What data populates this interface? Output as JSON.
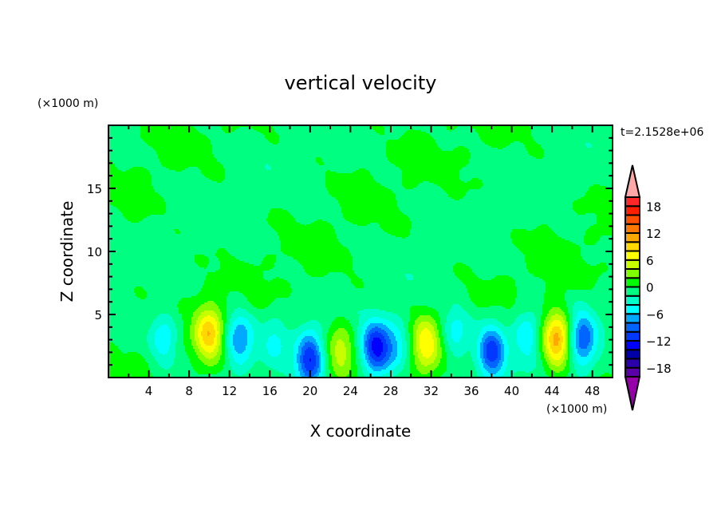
{
  "chart_data": {
    "type": "heatmap",
    "subtype": "filled-contour",
    "title": "vertical velocity",
    "xlabel": "X coordinate",
    "ylabel": "Z coordinate",
    "x_units": "(×1000 m)",
    "y_units": "(×1000 m)",
    "time_label": "t=2.1528e+06",
    "xlim": [
      0,
      50
    ],
    "ylim": [
      0,
      20
    ],
    "x_ticks": [
      4,
      8,
      12,
      16,
      20,
      24,
      28,
      32,
      36,
      40,
      44,
      48
    ],
    "x_tick_labels": [
      "4",
      "8",
      "12",
      "16",
      "20",
      "24",
      "28",
      "32",
      "36",
      "40",
      "44",
      "48"
    ],
    "x_minor_step": 2,
    "y_ticks": [
      5,
      10,
      15
    ],
    "y_tick_labels": [
      "5",
      "10",
      "15"
    ],
    "y_minor_step": 1,
    "colorbar": {
      "levels_min": -20,
      "levels_max": 20,
      "step": 2,
      "tick_values": [
        18,
        12,
        6,
        0,
        -6,
        -12,
        -18
      ],
      "tick_labels": [
        "18",
        "12",
        "6",
        "0",
        "−6",
        "−12",
        "−18"
      ],
      "colors_bottom_to_top": [
        "#5a00a8",
        "#2a00a8",
        "#0000a8",
        "#0000ff",
        "#0038ff",
        "#0064ff",
        "#00a8ff",
        "#00ffff",
        "#00ffc8",
        "#00ff80",
        "#00ff00",
        "#80ff00",
        "#c8ff00",
        "#ffff00",
        "#ffd800",
        "#ffa800",
        "#ff7800",
        "#ff5000",
        "#ff2000",
        "#ff2828"
      ],
      "over_color": "#ffa8a8",
      "under_color": "#9600a8"
    },
    "features": [
      {
        "x": 10,
        "z": 3.5,
        "w": 9.5
      },
      {
        "x": 23,
        "z": 2.2,
        "w": 5.5
      },
      {
        "x": 31.5,
        "z": 2.6,
        "w": 7.5
      },
      {
        "x": 44.5,
        "z": 3.0,
        "w": 11.5
      },
      {
        "x": 5.5,
        "z": 3.2,
        "w": -5.5
      },
      {
        "x": 13,
        "z": 3.0,
        "w": -7.5
      },
      {
        "x": 16.5,
        "z": 3.0,
        "w": -3.5
      },
      {
        "x": 20,
        "z": 1.5,
        "w": -11
      },
      {
        "x": 26.5,
        "z": 2.3,
        "w": -12
      },
      {
        "x": 28.5,
        "z": 2.5,
        "w": -5
      },
      {
        "x": 34.5,
        "z": 3.5,
        "w": -5
      },
      {
        "x": 38,
        "z": 2.0,
        "w": -11
      },
      {
        "x": 41.5,
        "z": 3.5,
        "w": -5.5
      },
      {
        "x": 47,
        "z": 3.0,
        "w": -9
      }
    ]
  }
}
